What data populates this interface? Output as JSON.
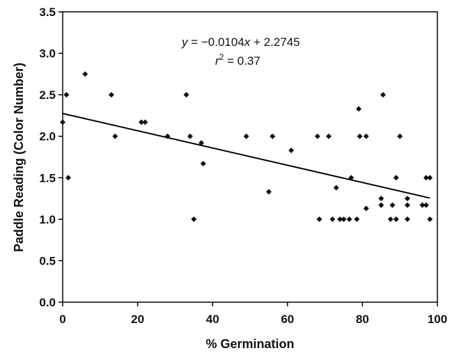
{
  "chart_data": {
    "type": "scatter",
    "xlabel": "% Germination",
    "ylabel": "Paddle Reading (Color Number)",
    "xlim": [
      0,
      100
    ],
    "ylim": [
      0,
      3.5
    ],
    "xticks": [
      "0",
      "20",
      "40",
      "60",
      "80",
      "100"
    ],
    "yticks": [
      "0.0",
      "0.5",
      "1.0",
      "1.5",
      "2.0",
      "2.5",
      "3.0",
      "3.5"
    ],
    "grid": false,
    "marker_color": "#111111",
    "series": [
      {
        "points": [
          [
            0,
            2.17
          ],
          [
            1,
            2.5
          ],
          [
            1.5,
            1.5
          ],
          [
            6,
            2.75
          ],
          [
            13,
            2.5
          ],
          [
            14,
            2.0
          ],
          [
            21,
            2.17
          ],
          [
            22,
            2.17
          ],
          [
            28,
            2.0
          ],
          [
            33,
            2.5
          ],
          [
            34,
            2.0
          ],
          [
            35,
            1.0
          ],
          [
            37,
            1.92
          ],
          [
            37.5,
            1.67
          ],
          [
            49,
            2.0
          ],
          [
            55,
            1.33
          ],
          [
            56,
            2.0
          ],
          [
            61,
            1.83
          ],
          [
            68,
            2.0
          ],
          [
            68.5,
            1.0
          ],
          [
            71,
            2.0
          ],
          [
            72,
            1.0
          ],
          [
            73,
            1.38
          ],
          [
            74,
            1.0
          ],
          [
            75,
            1.0
          ],
          [
            76.5,
            1.0
          ],
          [
            77,
            1.5
          ],
          [
            78.5,
            1.0
          ],
          [
            79,
            2.33
          ],
          [
            79.3,
            2.0
          ],
          [
            81,
            2.0
          ],
          [
            81,
            1.13
          ],
          [
            85,
            1.25
          ],
          [
            85,
            1.17
          ],
          [
            85.5,
            2.5
          ],
          [
            87.5,
            1.0
          ],
          [
            88,
            1.17
          ],
          [
            89,
            1.0
          ],
          [
            89,
            1.5
          ],
          [
            90,
            2.0
          ],
          [
            92,
            1.25
          ],
          [
            92,
            1.17
          ],
          [
            92,
            1.0
          ],
          [
            96,
            1.17
          ],
          [
            97,
            1.17
          ],
          [
            97,
            1.5
          ],
          [
            98,
            1.5
          ],
          [
            98,
            1.0
          ]
        ]
      }
    ],
    "trendline": {
      "slope": -0.0104,
      "intercept": 2.2745,
      "x_range": [
        0,
        98
      ]
    },
    "annotations": {
      "equation_y": "y",
      "equation_eq": " = ",
      "equation_coef": "−0.0104",
      "equation_x": "x",
      "equation_rest": " + 2.2745",
      "r2_r": "r",
      "r2_sup": "2",
      "r2_rest": "  = 0.37"
    }
  }
}
